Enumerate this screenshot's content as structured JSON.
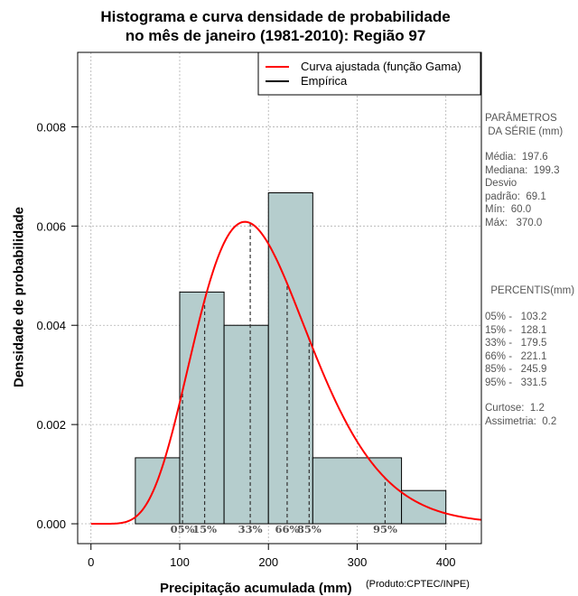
{
  "chart_data": {
    "type": "bar",
    "title_line1": "Histograma e curva densidade de probabilidade",
    "title_line2": "no mês de janeiro (1981-2010): Região 97",
    "xlabel": "Precipitação acumulada (mm)",
    "ylabel": "Densidade de probabilidade",
    "credit": "(Produto:CPTEC/INPE)",
    "xlim": [
      -15,
      440
    ],
    "ylim": [
      -0.0004,
      0.0095
    ],
    "x_ticks": [
      0,
      100,
      200,
      300,
      400
    ],
    "x_tick_labels": [
      "0",
      "100",
      "200",
      "300",
      "400"
    ],
    "y_ticks": [
      0.0,
      0.002,
      0.004,
      0.006,
      0.008
    ],
    "y_tick_labels": [
      "0.000",
      "0.002",
      "0.004",
      "0.006",
      "0.008"
    ],
    "grid": true,
    "histogram": {
      "bins": [
        {
          "from": 50,
          "to": 100,
          "density": 0.00133
        },
        {
          "from": 100,
          "to": 150,
          "density": 0.00467
        },
        {
          "from": 150,
          "to": 200,
          "density": 0.004
        },
        {
          "from": 200,
          "to": 250,
          "density": 0.00667
        },
        {
          "from": 250,
          "to": 350,
          "density": 0.00133
        },
        {
          "from": 350,
          "to": 400,
          "density": 0.00067
        }
      ],
      "fill_color": "#b5cdcd"
    },
    "fitted_curve": {
      "name": "Curva ajustada (função Gama)",
      "color": "#ff0000",
      "shape": 8.17,
      "scale": 24.2,
      "x_from": 0,
      "x_to": 440
    },
    "empirical_legend": "Empírica",
    "percentile_lines": [
      {
        "label": "05%",
        "x": 103.2
      },
      {
        "label": "15%",
        "x": 128.1
      },
      {
        "label": "33%",
        "x": 179.5
      },
      {
        "label": "66%",
        "x": 221.1
      },
      {
        "label": "85%",
        "x": 245.9
      },
      {
        "label": "95%",
        "x": 331.5
      }
    ],
    "legend_position": "top-right"
  },
  "side_panel": {
    "params_heading": "PARÂMETROS\n DA SÉRIE (mm)",
    "params_body": "Média:  197.6\nMediana:  199.3\nDesvio\npadrão:  69.1\nMín:  60.0\nMáx:   370.0",
    "percentis_heading": "  PERCENTIS(mm)",
    "percentis_body": "05% -   103.2\n15% -   128.1\n33% -   179.5\n66% -   221.1\n85% -   245.9\n95% -   331.5",
    "stats_body": "Curtose:  1.2\nAssimetria:  0.2"
  },
  "colors": {
    "curve": "#ff0000",
    "bars": "#b5cdcd",
    "grid": "#b0b0b0",
    "percentile_text": "#555555"
  }
}
